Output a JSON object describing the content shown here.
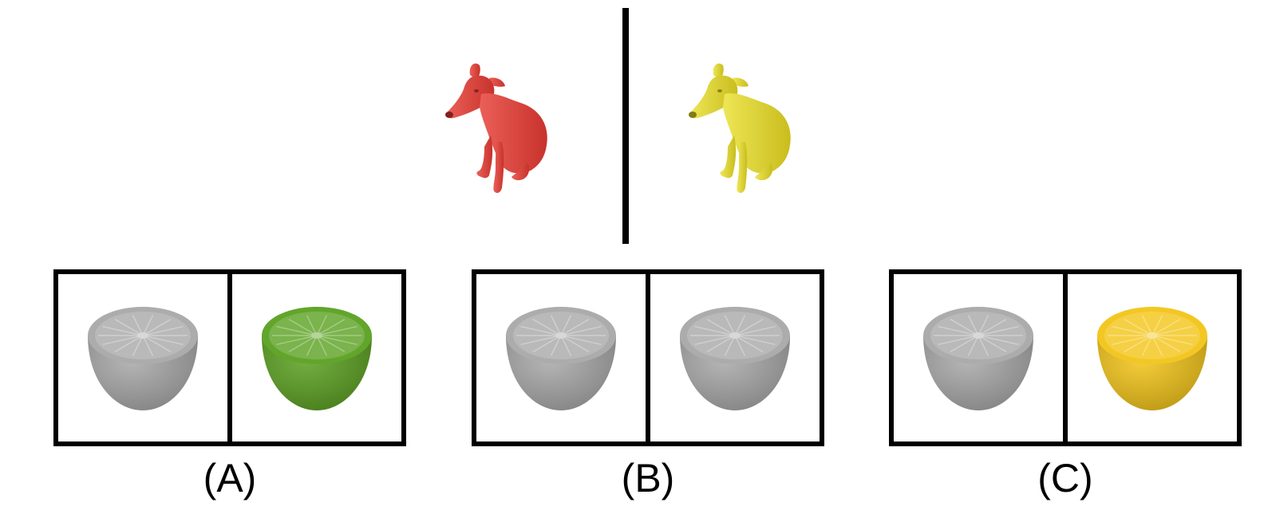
{
  "reference": {
    "left_dog": {
      "icon": "dog-icon",
      "color": "#e8524a",
      "shade": "#c8322c"
    },
    "right_dog": {
      "icon": "dog-icon",
      "color": "#ece446",
      "shade": "#c9bd1e"
    }
  },
  "options": [
    {
      "label": "(A)",
      "left_orange": {
        "icon": "orange-half-icon",
        "color": "#a8a8a8"
      },
      "right_orange": {
        "icon": "orange-half-icon",
        "color": "#5aa020"
      }
    },
    {
      "label": "(B)",
      "left_orange": {
        "icon": "orange-half-icon",
        "color": "#a8a8a8"
      },
      "right_orange": {
        "icon": "orange-half-icon",
        "color": "#a8a8a8"
      }
    },
    {
      "label": "(C)",
      "left_orange": {
        "icon": "orange-half-icon",
        "color": "#a8a8a8"
      },
      "right_orange": {
        "icon": "orange-half-icon",
        "color": "#f2c417"
      }
    }
  ]
}
